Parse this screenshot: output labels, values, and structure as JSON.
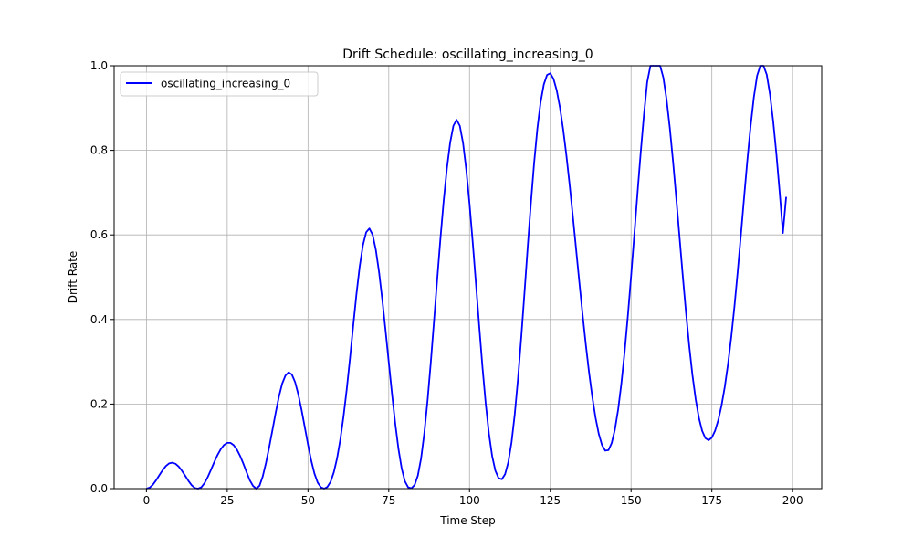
{
  "chart_data": {
    "type": "line",
    "title": "Drift Schedule: oscillating_increasing_0",
    "xlabel": "Time Step",
    "ylabel": "Drift Rate",
    "xlim": [
      -10,
      209
    ],
    "ylim": [
      0,
      1.0
    ],
    "xticks": [
      0,
      25,
      50,
      75,
      100,
      125,
      150,
      175,
      200
    ],
    "yticks": [
      0.0,
      0.2,
      0.4,
      0.6,
      0.8,
      1.0
    ],
    "xtick_labels": [
      "0",
      "25",
      "50",
      "75",
      "100",
      "125",
      "150",
      "175",
      "200"
    ],
    "ytick_labels": [
      "0.0",
      "0.2",
      "0.4",
      "0.6",
      "0.8",
      "1.0"
    ],
    "grid": true,
    "legend_position": "top-left",
    "x_start": 0,
    "x_step": 1,
    "series": [
      {
        "name": "oscillating_increasing_0",
        "color": "#0000ff",
        "values": [
          0.0,
          0.0024,
          0.0094,
          0.0198,
          0.0318,
          0.0436,
          0.0534,
          0.0596,
          0.0614,
          0.0587,
          0.0519,
          0.0419,
          0.0302,
          0.0183,
          0.008,
          0.0014,
          0.0,
          0.0034,
          0.0133,
          0.0278,
          0.045,
          0.0629,
          0.0796,
          0.0934,
          0.1032,
          0.1083,
          0.1082,
          0.1028,
          0.0922,
          0.0772,
          0.0588,
          0.0387,
          0.0195,
          0.0063,
          0.0,
          0.0068,
          0.0291,
          0.0609,
          0.0983,
          0.1386,
          0.1795,
          0.2174,
          0.2481,
          0.2672,
          0.275,
          0.2699,
          0.252,
          0.223,
          0.1865,
          0.1456,
          0.1042,
          0.0664,
          0.0355,
          0.0142,
          0.0032,
          0.0,
          0.004,
          0.0164,
          0.0387,
          0.0716,
          0.1159,
          0.1708,
          0.2354,
          0.3082,
          0.3852,
          0.46,
          0.5252,
          0.5754,
          0.6063,
          0.6151,
          0.6005,
          0.5646,
          0.5116,
          0.4465,
          0.3743,
          0.2989,
          0.2241,
          0.1543,
          0.0941,
          0.0476,
          0.0174,
          0.0032,
          0.0008,
          0.0085,
          0.0307,
          0.0711,
          0.1309,
          0.2077,
          0.2977,
          0.3957,
          0.4956,
          0.5921,
          0.6808,
          0.7574,
          0.8181,
          0.858,
          0.8722,
          0.858,
          0.8171,
          0.7537,
          0.6734,
          0.5818,
          0.4836,
          0.384,
          0.2883,
          0.2021,
          0.1306,
          0.0772,
          0.0424,
          0.0249,
          0.0222,
          0.0339,
          0.0623,
          0.1094,
          0.1758,
          0.2594,
          0.3564,
          0.4619,
          0.5702,
          0.675,
          0.7705,
          0.8512,
          0.9135,
          0.9559,
          0.9783,
          0.982,
          0.969,
          0.9414,
          0.9009,
          0.849,
          0.7873,
          0.7179,
          0.6432,
          0.5656,
          0.4877,
          0.4118,
          0.3402,
          0.2746,
          0.2167,
          0.1679,
          0.1296,
          0.1031,
          0.0898,
          0.091,
          0.1077,
          0.1398,
          0.1869,
          0.2483,
          0.3226,
          0.4078,
          0.5014,
          0.6,
          0.6998,
          0.7963,
          0.8851,
          0.9616,
          1.0,
          1.0,
          1.0,
          1.0,
          0.9718,
          0.9198,
          0.8525,
          0.7733,
          0.686,
          0.5948,
          0.5038,
          0.4169,
          0.3375,
          0.2683,
          0.2111,
          0.1671,
          0.1366,
          0.1194,
          0.1145,
          0.1207,
          0.1368,
          0.1622,
          0.1967,
          0.2406,
          0.2942,
          0.3578,
          0.4311,
          0.5128,
          0.6003,
          0.69,
          0.7773,
          0.8573,
          0.9252,
          0.9763,
          1.0,
          1.0,
          0.9788,
          0.9324,
          0.8681,
          0.7895,
          0.7003,
          0.6046,
          0.69
        ]
      }
    ]
  }
}
